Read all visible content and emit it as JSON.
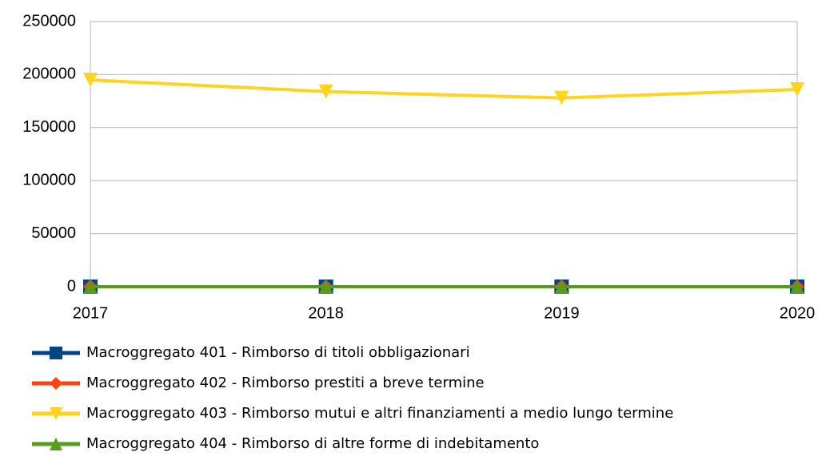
{
  "chart_data": {
    "type": "line",
    "categories": [
      "2017",
      "2018",
      "2019",
      "2020"
    ],
    "series": [
      {
        "name": "Macroggregato 401 - Rimborso di titoli obbligazionari",
        "color": "#004586",
        "marker": "square",
        "values": [
          0,
          0,
          0,
          0
        ]
      },
      {
        "name": "Macroggregato 402 - Rimborso prestiti a breve termine",
        "color": "#ff420e",
        "marker": "diamond",
        "values": [
          0,
          0,
          0,
          0
        ]
      },
      {
        "name": "Macroggregato 403 - Rimborso mutui e altri finanziamenti a medio lungo termine",
        "color": "#ffd320",
        "marker": "triangle-down",
        "values": [
          195000,
          184000,
          178000,
          186000
        ]
      },
      {
        "name": "Macroggregato 404 - Rimborso di altre forme di indebitamento",
        "color": "#579d1c",
        "marker": "triangle-up",
        "values": [
          0,
          0,
          0,
          0
        ]
      }
    ],
    "ylim": [
      0,
      250000
    ],
    "yticks": [
      0,
      50000,
      100000,
      150000,
      200000,
      250000
    ],
    "grid": true,
    "legend": "bottom"
  }
}
